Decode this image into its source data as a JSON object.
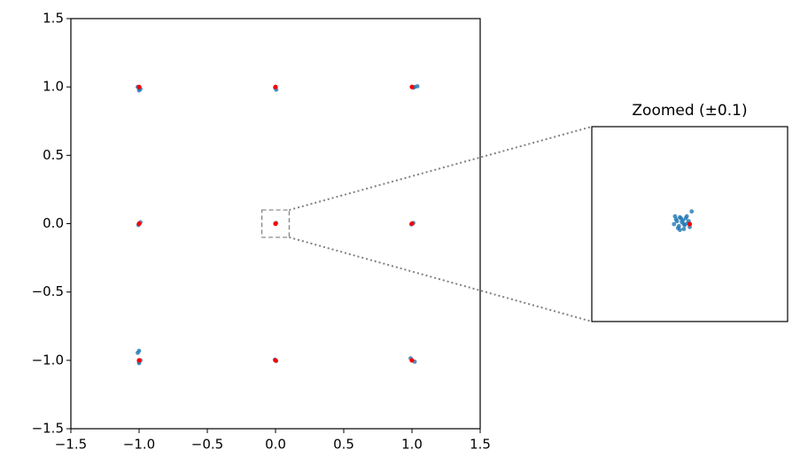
{
  "chart_data": [
    {
      "type": "scatter",
      "xlim": [
        -1.5,
        1.5
      ],
      "ylim": [
        -1.5,
        1.5
      ],
      "xticks": [
        {
          "value": -1.5,
          "label": "−1.5"
        },
        {
          "value": -1,
          "label": "−1.0"
        },
        {
          "value": -0.5,
          "label": "−0.5"
        },
        {
          "value": 0,
          "label": "0.0"
        },
        0.5,
        {
          "value": 1,
          "label": "1.0"
        },
        1.5
      ],
      "yticks": [
        {
          "value": -1.5,
          "label": "−1.5"
        },
        {
          "value": -1,
          "label": "−1.0"
        },
        {
          "value": -0.5,
          "label": "−0.5"
        },
        {
          "value": 0,
          "label": "0.0"
        },
        0.5,
        {
          "value": 1,
          "label": "1.0"
        },
        1.5
      ],
      "series": [
        {
          "color": "#1f77b4",
          "x": [
            -1.0,
            -0.99,
            -1.01,
            -1.0,
            0.0,
            0.005,
            -0.003,
            1.0,
            1.02,
            1.04,
            1.01,
            -1.0,
            -0.99,
            -1.005,
            0.0,
            0.004,
            1.0,
            1.01,
            0.995,
            -1.0,
            -1.0,
            -0.99,
            -1.0,
            -1.01,
            0.0,
            0.005,
            -0.005,
            1.0,
            1.02,
            0.99
          ],
          "y": [
            0.99,
            0.985,
            1.0,
            0.975,
            1.0,
            0.98,
            0.995,
            1.0,
            1.0,
            1.005,
            0.995,
            0.0,
            0.01,
            -0.01,
            0.0,
            0.005,
            0.0,
            0.005,
            -0.005,
            -1.01,
            -1.02,
            -1.0,
            -0.93,
            -0.945,
            -1.0,
            -1.005,
            -0.995,
            -1.0,
            -1.01,
            -0.985
          ]
        },
        {
          "color": "#ff0000",
          "x": [
            -1,
            0,
            1,
            -1,
            0,
            1,
            -1,
            0,
            1
          ],
          "y": [
            1,
            1,
            1,
            0,
            0,
            0,
            -1,
            -1,
            -1
          ]
        }
      ]
    },
    {
      "type": "scatter",
      "title": "Zoomed (±0.1)",
      "xlim": [
        -0.1,
        0.1
      ],
      "ylim": [
        -0.1,
        0.1
      ],
      "series": [
        {
          "color": "#1f77b4",
          "x": [
            -0.016,
            -0.014,
            -0.012,
            -0.01,
            -0.008,
            -0.006,
            -0.004,
            -0.002,
            0.0,
            -0.015,
            -0.011,
            -0.007,
            -0.003,
            -0.013,
            -0.009,
            -0.005,
            -0.001,
            0.002,
            -0.01,
            -0.006
          ],
          "y": [
            0.0,
            0.005,
            -0.004,
            0.007,
            0.002,
            -0.005,
            0.006,
            0.001,
            -0.003,
            0.008,
            -0.002,
            0.004,
            0.008,
            0.003,
            0.006,
            -0.001,
            0.003,
            0.013,
            -0.006,
            0.0
          ]
        },
        {
          "color": "#ff0000",
          "x": [
            0
          ],
          "y": [
            0
          ]
        }
      ]
    }
  ]
}
